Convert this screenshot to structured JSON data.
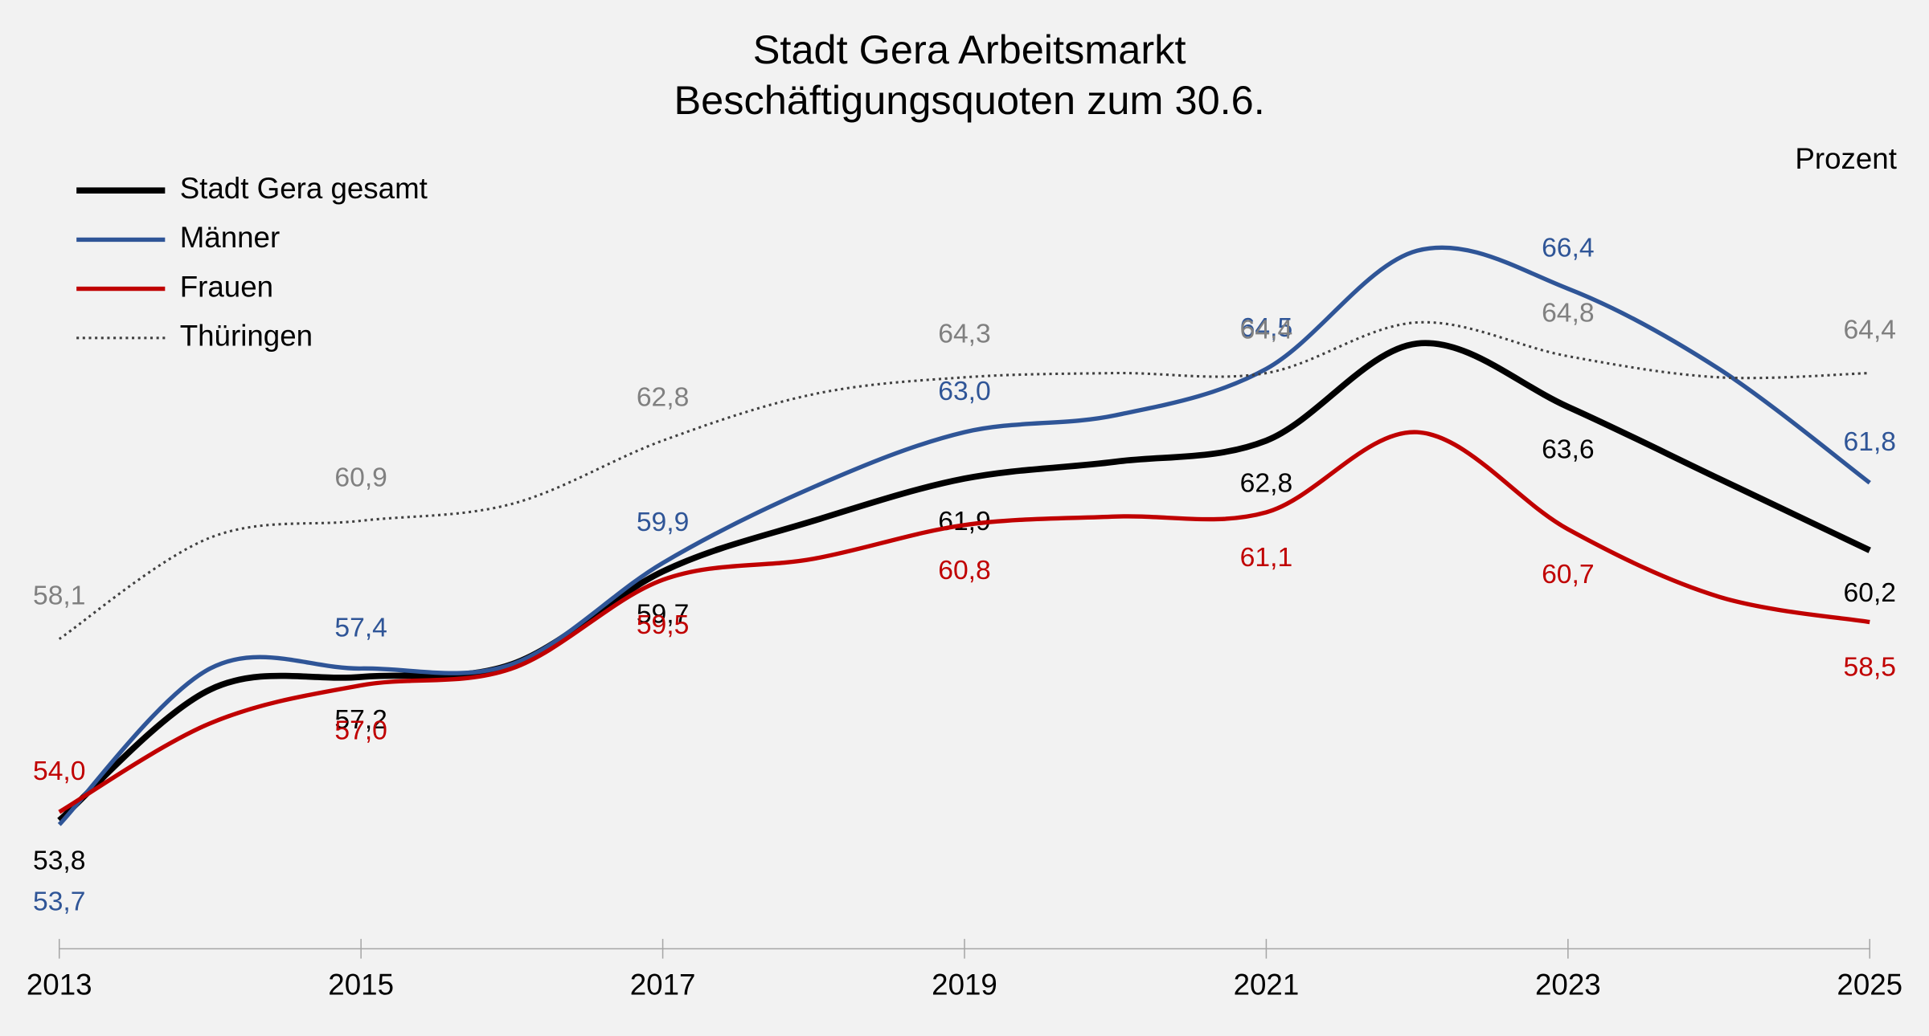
{
  "chart_data": {
    "type": "line",
    "title": "Stadt Gera Arbeitsmarkt",
    "subtitle": "Beschäftigungsquoten zum 30.6.",
    "y_label": "Prozent",
    "x": [
      2013,
      2014,
      2015,
      2016,
      2017,
      2018,
      2019,
      2020,
      2021,
      2022,
      2023,
      2024,
      2025
    ],
    "xlim": [
      2013,
      2025
    ],
    "xticks": [
      2013,
      2015,
      2017,
      2019,
      2021,
      2023,
      2025
    ],
    "legend": "upper left",
    "series": [
      {
        "name": "Stadt Gera gesamt",
        "color": "#000000",
        "style": "solid",
        "values": [
          53.8,
          56.9,
          57.2,
          57.5,
          59.7,
          60.9,
          61.9,
          62.3,
          62.8,
          65.1,
          63.6,
          61.9,
          60.2
        ],
        "value_labels": [
          "53,8",
          null,
          "57,2",
          null,
          "59,7",
          null,
          "61,9",
          null,
          "62,8",
          null,
          "63,6",
          null,
          "60,2"
        ]
      },
      {
        "name": "Männer",
        "color": "#2f5597",
        "style": "solid",
        "values": [
          53.7,
          57.4,
          57.4,
          57.5,
          59.9,
          61.7,
          63.0,
          63.4,
          64.5,
          67.3,
          66.4,
          64.5,
          61.8
        ],
        "value_labels": [
          "53,7",
          null,
          "57,4",
          null,
          "59,9",
          null,
          "63,0",
          null,
          "64,5",
          null,
          "66,4",
          null,
          "61,8"
        ]
      },
      {
        "name": "Frauen",
        "color": "#c00000",
        "style": "solid",
        "values": [
          54.0,
          56.1,
          57.0,
          57.4,
          59.5,
          60.0,
          60.8,
          61.0,
          61.1,
          63.0,
          60.7,
          59.1,
          58.5
        ],
        "value_labels": [
          "54,0",
          null,
          "57,0",
          null,
          "59,5",
          null,
          "60,8",
          null,
          "61,1",
          null,
          "60,7",
          null,
          "58,5"
        ]
      },
      {
        "name": "Thüringen",
        "color": "#404040",
        "style": "dotted",
        "values": [
          58.1,
          60.5,
          60.9,
          61.3,
          62.8,
          63.9,
          64.3,
          64.4,
          64.4,
          65.6,
          64.8,
          64.3,
          64.4
        ],
        "value_labels": [
          "58,1",
          null,
          "60,9",
          null,
          "62,8",
          null,
          "64,3",
          null,
          "64,4",
          null,
          "64,8",
          null,
          "64,4"
        ]
      }
    ]
  }
}
